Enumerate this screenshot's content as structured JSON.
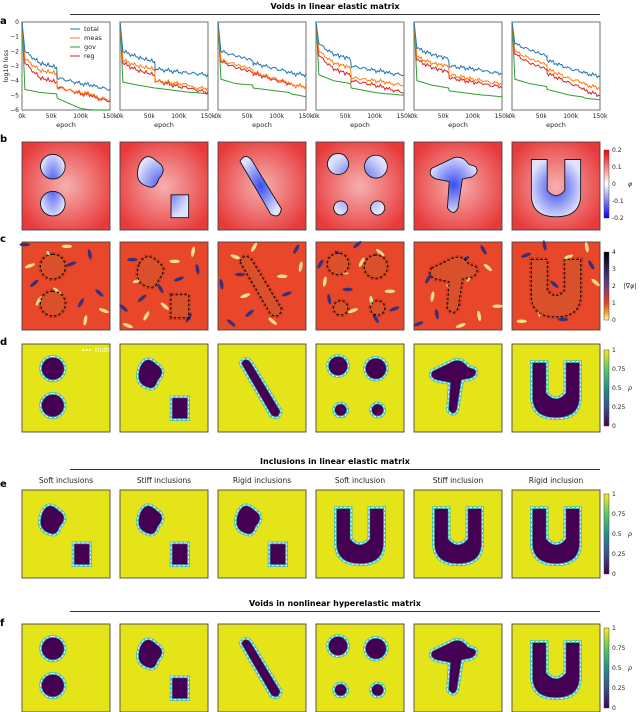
{
  "sections": {
    "s1": "Voids in linear elastic matrix",
    "s2": "Inclusions in linear elastic matrix",
    "s3": "Voids in nonlinear hyperelastic matrix"
  },
  "panel_labels": {
    "a": "a",
    "b": "b",
    "c": "c",
    "d": "d",
    "e": "e",
    "f": "f"
  },
  "row_e_titles": [
    "Soft inclusions",
    "Stiff inclusions",
    "Rigid inclusions",
    "Soft inclusion",
    "Stiff inclusion",
    "Rigid inclusion"
  ],
  "truth_label": "truth",
  "colorbars": {
    "phi": {
      "label": "φ",
      "ticks": [
        "0.2",
        "0.1",
        "0",
        "-0.1",
        "-0.2"
      ]
    },
    "grad": {
      "label": "|∇φ|",
      "ticks": [
        "4",
        "3",
        "2",
        "1",
        "0"
      ]
    },
    "rho": {
      "label": "ρ",
      "ticks": [
        "1",
        "0.75",
        "0.5",
        "0.25",
        "0"
      ]
    }
  },
  "chart_data": {
    "type": "line",
    "ylabel": "log10 loss",
    "xlabel": "epoch",
    "xlim": [
      0,
      150000
    ],
    "ylim": [
      -6,
      0
    ],
    "xticks": [
      "0k",
      "50k",
      "100k",
      "150k"
    ],
    "yticks": [
      "0",
      "−1",
      "−2",
      "−3",
      "−4",
      "−5",
      "−6"
    ],
    "legend": [
      "total",
      "meas",
      "gov",
      "reg"
    ],
    "colors": {
      "total": "#1f77b4",
      "meas": "#ff7f0e",
      "gov": "#2ca02c",
      "reg": "#d62728"
    },
    "x": [
      0,
      5000,
      30000,
      59000,
      60000,
      100000,
      120000,
      125000,
      150000
    ],
    "subplots": [
      {
        "total": [
          0,
          -2,
          -2.8,
          -3.1,
          -3.8,
          -4.2,
          -4.3,
          -4.4,
          -4.6
        ],
        "meas": [
          0,
          -2.5,
          -3.3,
          -3.5,
          -4.5,
          -4.8,
          -4.9,
          -5.1,
          -5.3
        ],
        "gov": [
          0,
          -4.6,
          -4.8,
          -4.9,
          -5.2,
          -5.9,
          -6,
          -6,
          -6
        ],
        "reg": [
          0,
          -2.8,
          -3.8,
          -4.1,
          -4.4,
          -4.9,
          -5,
          -5.2,
          -5.4
        ]
      },
      {
        "total": [
          0,
          -2,
          -2.4,
          -2.7,
          -3.2,
          -3.4,
          -3.5,
          -3.5,
          -3.6
        ],
        "meas": [
          0,
          -2.6,
          -3,
          -3.2,
          -4,
          -4.2,
          -4.3,
          -4.5,
          -4.5
        ],
        "gov": [
          0,
          -4.1,
          -4.3,
          -4.5,
          -4.5,
          -4.7,
          -4.8,
          -4.8,
          -4.9
        ],
        "reg": [
          0,
          -2.8,
          -3.3,
          -3.6,
          -4,
          -4.4,
          -4.5,
          -4.6,
          -4.8
        ]
      },
      {
        "total": [
          0,
          -2,
          -2.3,
          -2.6,
          -2.8,
          -3.2,
          -3.4,
          -3.5,
          -3.6
        ],
        "meas": [
          0,
          -2.6,
          -2.9,
          -3.2,
          -3.4,
          -3.9,
          -4.1,
          -4.3,
          -4.4
        ],
        "gov": [
          0,
          -3.9,
          -4.2,
          -4.3,
          -4.5,
          -4.7,
          -4.8,
          -4.9,
          -5.1
        ],
        "reg": [
          0,
          -2.7,
          -3.1,
          -3.4,
          -3.5,
          -4,
          -4.2,
          -4.3,
          -4.4
        ]
      },
      {
        "total": [
          0,
          -1.5,
          -2.2,
          -2.5,
          -3,
          -3.3,
          -3.4,
          -3.5,
          -3.6
        ],
        "meas": [
          0,
          -2,
          -2.8,
          -3.1,
          -3.8,
          -4,
          -4.1,
          -4.2,
          -4.3
        ],
        "gov": [
          0,
          -3.6,
          -4,
          -4.2,
          -4.5,
          -4.8,
          -4.9,
          -4.9,
          -5
        ],
        "reg": [
          0,
          -2.3,
          -3.2,
          -3.6,
          -4,
          -4.3,
          -4.5,
          -4.6,
          -4.8
        ]
      },
      {
        "total": [
          0,
          -1.8,
          -2.2,
          -2.5,
          -3,
          -3.2,
          -3.3,
          -3.4,
          -3.5
        ],
        "meas": [
          0,
          -2.4,
          -2.8,
          -3,
          -3.6,
          -3.9,
          -4,
          -4.1,
          -4.2
        ],
        "gov": [
          0,
          -4,
          -4.3,
          -4.5,
          -4.7,
          -4.9,
          -5,
          -5,
          -5.1
        ],
        "reg": [
          0,
          -2.6,
          -3.1,
          -3.4,
          -3.8,
          -4.1,
          -4.2,
          -4.3,
          -4.4
        ]
      },
      {
        "total": [
          0,
          -1.5,
          -1.9,
          -2.3,
          -2.6,
          -3.2,
          -3.4,
          -3.5,
          -3.7
        ],
        "meas": [
          0,
          -2,
          -2.5,
          -2.9,
          -3.2,
          -3.9,
          -4.1,
          -4.3,
          -4.5
        ],
        "gov": [
          0,
          -3.9,
          -4.2,
          -4.4,
          -4.6,
          -5,
          -5.1,
          -5.2,
          -5.3
        ],
        "reg": [
          0,
          -2.2,
          -2.8,
          -3.2,
          -3.5,
          -4.2,
          -4.5,
          -4.7,
          -5
        ]
      }
    ]
  }
}
